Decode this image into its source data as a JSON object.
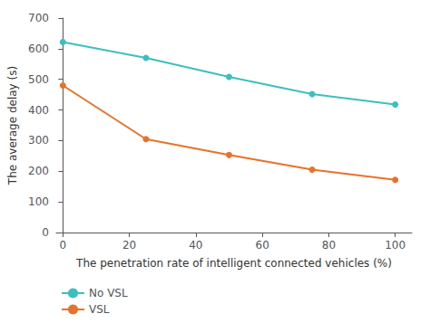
{
  "chart_data": {
    "type": "line",
    "x": [
      0,
      25,
      50,
      75,
      100
    ],
    "series": [
      {
        "name": "No VSL",
        "color": "#3dbfbf",
        "values": [
          622,
          570,
          508,
          452,
          418
        ]
      },
      {
        "name": "VSL",
        "color": "#e8722a",
        "values": [
          480,
          305,
          253,
          205,
          172
        ]
      }
    ],
    "xlabel": "The penetration rate of intelligent connected vehicles (%)",
    "ylabel": "The average delay (s)",
    "xlim": [
      -2,
      105
    ],
    "ylim": [
      0,
      700
    ],
    "xticks": [
      0,
      20,
      40,
      60,
      80,
      100
    ],
    "yticks": [
      0,
      100,
      200,
      300,
      400,
      500,
      600,
      700
    ],
    "marker": "circle",
    "grid": false,
    "legend": "lower left"
  }
}
